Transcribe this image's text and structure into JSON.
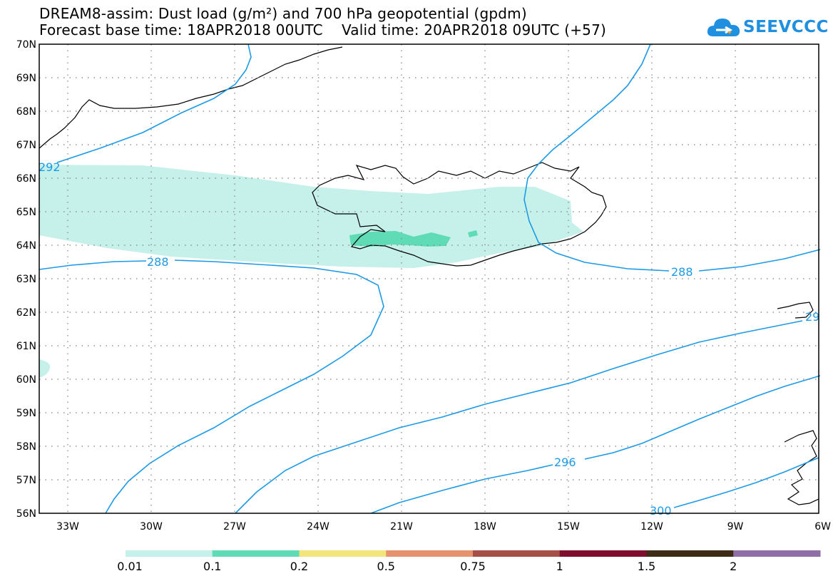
{
  "header": {
    "title_line1": "DREAM8-assim: Dust load (g/m²) and 700 hPa geopotential (gpdm)",
    "title_line2": "Forecast base time: 18APR2018 00UTC    Valid time: 20APR2018 09UTC (+57)"
  },
  "logo": {
    "text": "SEEVCCC"
  },
  "map": {
    "lat_labels": [
      "70N",
      "69N",
      "68N",
      "67N",
      "66N",
      "65N",
      "64N",
      "63N",
      "62N",
      "61N",
      "60N",
      "59N",
      "58N",
      "57N",
      "56N"
    ],
    "lon_labels": [
      "33W",
      "30W",
      "27W",
      "24W",
      "21W",
      "18W",
      "15W",
      "12W",
      "9W",
      "6W"
    ],
    "contour_labels": [
      "292",
      "288",
      "288",
      "296",
      "300",
      "29"
    ],
    "contour_color": "#1c9ae6",
    "dust_colors": {
      "low": "#c6f1ea",
      "mid": "#5fdcb6"
    }
  },
  "colorbar": {
    "labels": [
      "0.01",
      "0.1",
      "0.2",
      "0.5",
      "0.75",
      "1",
      "1.5",
      "2"
    ],
    "colors": [
      "#c6f1ea",
      "#5fdcb6",
      "#f3e57a",
      "#e7926f",
      "#a64f45",
      "#7e0d2e",
      "#3d2b15",
      "#8f6fa6"
    ]
  }
}
